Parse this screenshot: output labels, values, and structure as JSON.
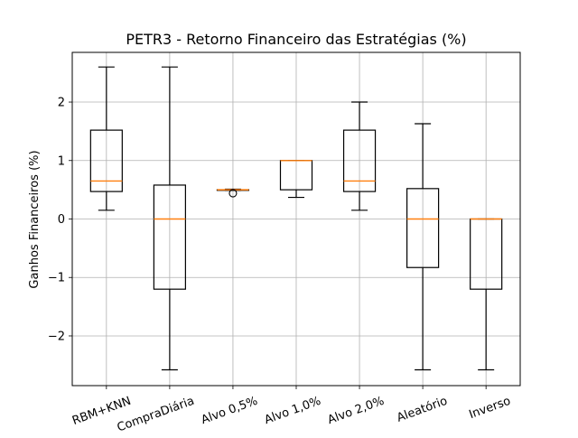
{
  "chart_data": {
    "type": "box",
    "title": "PETR3 - Retorno Financeiro das Estratégias (%)",
    "xlabel": "",
    "ylabel": "Ganhos Financeiros (%)",
    "ylim": [
      -2.85,
      2.85
    ],
    "yticks": [
      -2,
      -1,
      0,
      1,
      2
    ],
    "ytick_labels": [
      "−2",
      "−1",
      "0",
      "1",
      "2"
    ],
    "grid": true,
    "colors": {
      "box": "#000000",
      "median": "#ff7f0e",
      "grid": "#b0b0b0"
    },
    "categories": [
      "RBM+KNN",
      "CompraDiária",
      "Alvo 0,5%",
      "Alvo 1,0%",
      "Alvo 2,0%",
      "Aleatório",
      "Inverso"
    ],
    "boxes": [
      {
        "whislo": 0.15,
        "q1": 0.47,
        "med": 0.65,
        "q3": 1.52,
        "whishi": 2.6,
        "fliers": []
      },
      {
        "whislo": -2.58,
        "q1": -1.2,
        "med": 0.0,
        "q3": 0.58,
        "whishi": 2.6,
        "fliers": []
      },
      {
        "whislo": 0.49,
        "q1": 0.49,
        "med": 0.5,
        "q3": 0.5,
        "whishi": 0.51,
        "fliers": [
          0.44
        ]
      },
      {
        "whislo": 0.37,
        "q1": 0.5,
        "med": 1.0,
        "q3": 1.0,
        "whishi": 1.0,
        "fliers": []
      },
      {
        "whislo": 0.15,
        "q1": 0.47,
        "med": 0.65,
        "q3": 1.52,
        "whishi": 2.0,
        "fliers": []
      },
      {
        "whislo": -2.58,
        "q1": -0.83,
        "med": 0.0,
        "q3": 0.52,
        "whishi": 1.63,
        "fliers": []
      },
      {
        "whislo": -2.58,
        "q1": -1.2,
        "med": 0.0,
        "q3": 0.0,
        "whishi": 0.0,
        "fliers": []
      }
    ]
  }
}
